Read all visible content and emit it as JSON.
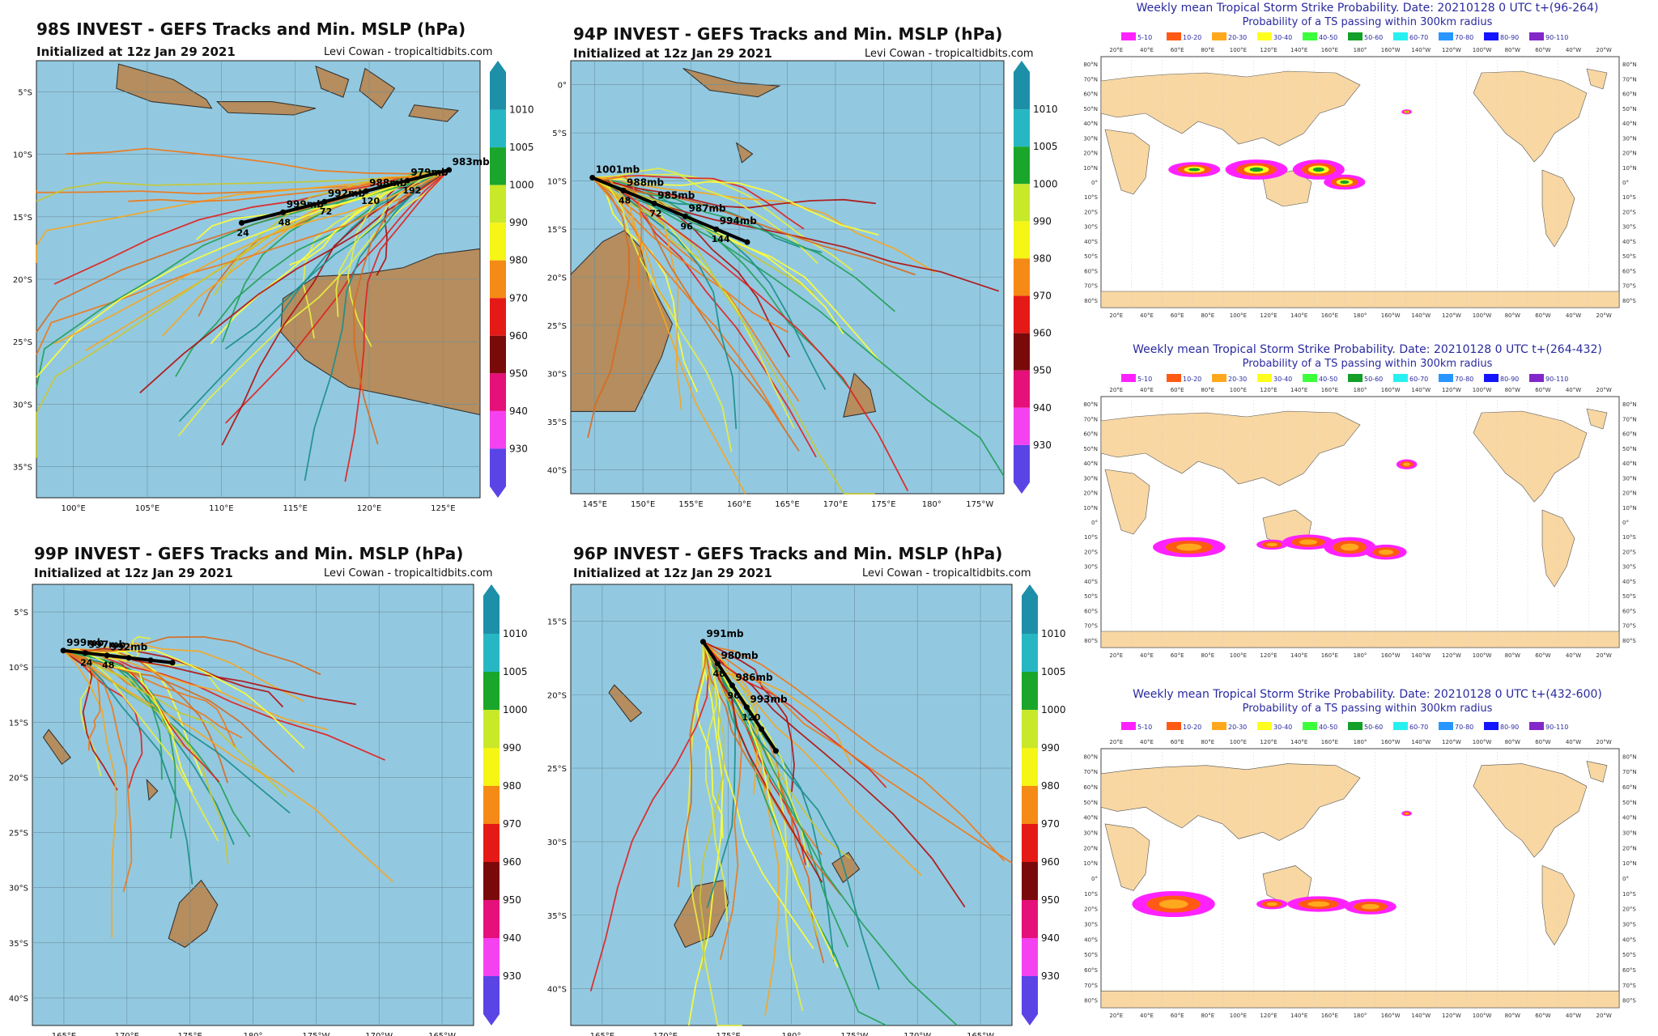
{
  "track_panels": [
    {
      "title": "98S INVEST - GEFS Tracks and Min. MSLP (hPa)",
      "init": "Initialized at 12z Jan 29 2021",
      "credit": "Levi Cowan - tropicaltidbits.com",
      "lat_labels": [
        "5°S",
        "10°S",
        "15°S",
        "20°S",
        "25°S",
        "30°S",
        "35°S"
      ],
      "lon_labels": [
        "100°E",
        "105°E",
        "110°E",
        "115°E",
        "120°E",
        "125°E"
      ],
      "mslp_labels": [
        "983mb",
        "979mb",
        "988mb",
        "992mb",
        "999mb"
      ],
      "hour_labels": [
        "192",
        "120",
        "72",
        "48",
        "24"
      ]
    },
    {
      "title": "94P INVEST - GEFS Tracks and Min. MSLP (hPa)",
      "init": "Initialized at 12z Jan 29 2021",
      "credit": "Levi Cowan - tropicaltidbits.com",
      "lat_labels": [
        "0°",
        "5°S",
        "10°S",
        "15°S",
        "20°S",
        "25°S",
        "30°S",
        "35°S",
        "40°S"
      ],
      "lon_labels": [
        "145°E",
        "150°E",
        "155°E",
        "160°E",
        "165°E",
        "170°E",
        "175°E",
        "180°",
        "175°W"
      ],
      "mslp_labels": [
        "1001mb",
        "988mb",
        "985mb",
        "987mb",
        "994mb"
      ],
      "hour_labels": [
        "48",
        "72",
        "96",
        "144"
      ]
    },
    {
      "title": "99P INVEST - GEFS Tracks and Min. MSLP (hPa)",
      "init": "Initialized at 12z Jan 29 2021",
      "credit": "Levi Cowan - tropicaltidbits.com",
      "lat_labels": [
        "5°S",
        "10°S",
        "15°S",
        "20°S",
        "25°S",
        "30°S",
        "35°S",
        "40°S"
      ],
      "lon_labels": [
        "165°E",
        "170°E",
        "175°E",
        "180°",
        "175°W",
        "170°W",
        "165°W"
      ],
      "mslp_labels": [
        "999mb",
        "997mb",
        "992mb"
      ],
      "hour_labels": [
        "24",
        "48"
      ]
    },
    {
      "title": "96P INVEST - GEFS Tracks and Min. MSLP (hPa)",
      "init": "Initialized at 12z Jan 29 2021",
      "credit": "Levi Cowan - tropicaltidbits.com",
      "lat_labels": [
        "15°S",
        "20°S",
        "25°S",
        "30°S",
        "35°S",
        "40°S"
      ],
      "lon_labels": [
        "165°E",
        "170°E",
        "175°E",
        "180°",
        "175°W",
        "170°W",
        "165°W"
      ],
      "mslp_labels": [
        "991mb",
        "980mb",
        "986mb",
        "993mb"
      ],
      "hour_labels": [
        "48",
        "96",
        "120"
      ]
    }
  ],
  "colorbar": {
    "labels": [
      "1010",
      "1005",
      "1000",
      "990",
      "980",
      "970",
      "960",
      "950",
      "940",
      "930"
    ],
    "colors": [
      "#1e8fa8",
      "#27b7c2",
      "#1aa62a",
      "#c8e82a",
      "#f5f516",
      "#f58a16",
      "#e51a16",
      "#7a0a0a",
      "#e6107a",
      "#f542f0",
      "#5a44e6"
    ]
  },
  "strike_panels": [
    {
      "title": "Weekly mean Tropical Storm Strike Probability. Date: 20210128  0 UTC    t+(96-264)",
      "subtitle": "Probability of a TS passing within  300km radius"
    },
    {
      "title": "Weekly mean Tropical Storm Strike Probability. Date: 20210128  0 UTC    t+(264-432)",
      "subtitle": "Probability of a TS passing within  300km radius"
    },
    {
      "title": "Weekly mean Tropical Storm Strike Probability. Date: 20210128  0 UTC    t+(432-600)",
      "subtitle": "Probability of a TS passing within  300km radius"
    }
  ],
  "strike_legend": {
    "labels": [
      "5-10",
      "10-20",
      "20-30",
      "30-40",
      "40-50",
      "50-60",
      "60-70",
      "70-80",
      "80-90",
      "90-110"
    ],
    "colors": [
      "#ff22ff",
      "#ff5a14",
      "#ffa81e",
      "#ffff1e",
      "#3cff3c",
      "#14a028",
      "#28f0f0",
      "#2896ff",
      "#1414ff",
      "#8228c8"
    ]
  },
  "strike_lon_labels": [
    "20°E",
    "40°E",
    "60°E",
    "80°E",
    "100°E",
    "120°E",
    "140°E",
    "160°E",
    "180°",
    "160°W",
    "140°W",
    "120°W",
    "100°W",
    "80°W",
    "60°W",
    "40°W",
    "20°W"
  ],
  "strike_lat_labels": [
    "80°N",
    "70°N",
    "60°N",
    "50°N",
    "40°N",
    "30°N",
    "20°N",
    "10°N",
    "0°",
    "10°S",
    "20°S",
    "30°S",
    "40°S",
    "50°S",
    "60°S",
    "70°S",
    "80°S"
  ]
}
